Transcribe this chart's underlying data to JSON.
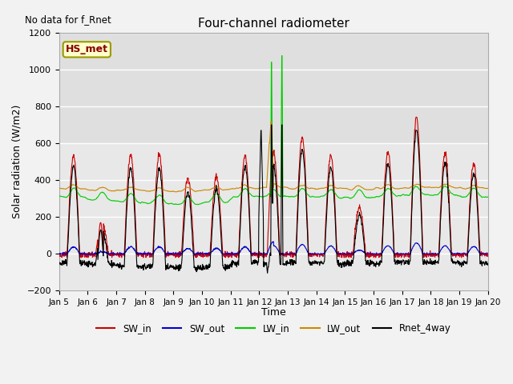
{
  "title": "Four-channel radiometer",
  "top_left_text": "No data for f_Rnet",
  "ylabel": "Solar radiation (W/m2)",
  "xlabel": "Time",
  "legend_label": "HS_met",
  "xlim_days": [
    5,
    20
  ],
  "ylim": [
    -200,
    1200
  ],
  "yticks": [
    -200,
    0,
    200,
    400,
    600,
    800,
    1000,
    1200
  ],
  "xtick_labels": [
    "Jan 5",
    "Jan 6",
    "Jan 7",
    "Jan 8",
    "Jan 9",
    "Jan 10",
    "Jan 11",
    "Jan 12",
    "Jan 13",
    "Jan 14",
    "Jan 15",
    "Jan 16",
    "Jan 17",
    "Jan 18",
    "Jan 19",
    "Jan 20"
  ],
  "colors": {
    "SW_in": "#cc0000",
    "SW_out": "#0000cc",
    "LW_in": "#00cc00",
    "LW_out": "#cc8800",
    "Rnet_4way": "#000000"
  },
  "plot_bg_color": "#e8e8e8",
  "fig_bg_color": "#f2f2f2"
}
